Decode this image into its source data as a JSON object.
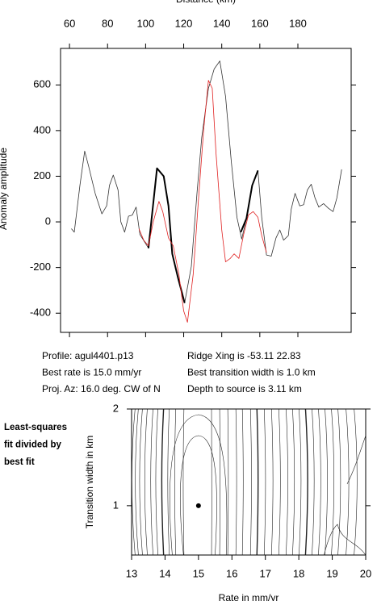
{
  "chart_data": [
    {
      "type": "line",
      "x_label": "Distance (km)",
      "y_label": "Anomaly amplitude",
      "xlim": [
        55.3,
        208
      ],
      "ylim": [
        -484,
        760
      ],
      "xticks": [
        60,
        80,
        100,
        120,
        140,
        160,
        180
      ],
      "yticks": [
        -400,
        -200,
        0,
        200,
        400,
        600
      ],
      "series": [
        {
          "color": "#333333",
          "line_width": 0.8,
          "x": [
            61,
            62.5,
            65.5,
            68,
            70,
            73.5,
            77,
            79.5,
            81,
            83,
            85.5,
            87,
            89,
            91,
            93,
            95,
            97,
            100,
            101.5,
            106,
            109.5,
            112,
            114,
            117,
            120.5,
            124,
            127,
            129.5,
            133,
            136,
            139,
            142,
            145,
            148,
            150.5,
            153,
            156,
            159,
            161,
            163.5,
            166,
            168.5,
            170.5,
            172.5,
            175,
            176.5,
            178.5,
            181,
            183,
            185,
            187,
            189,
            191,
            193.5,
            196,
            198.5,
            200.5,
            203
          ],
          "values": [
            -30,
            -45,
            160,
            310,
            245,
            125,
            35,
            70,
            160,
            205,
            140,
            0,
            -45,
            25,
            30,
            65,
            -55,
            -95,
            -115,
            235,
            200,
            70,
            -140,
            -245,
            -355,
            -195,
            125,
            370,
            585,
            670,
            705,
            550,
            265,
            20,
            -75,
            15,
            160,
            225,
            20,
            -145,
            -150,
            -70,
            -35,
            -80,
            -60,
            55,
            125,
            70,
            75,
            140,
            165,
            105,
            65,
            80,
            60,
            45,
            105,
            230
          ]
        },
        {
          "color": "#000000",
          "line_width": 2,
          "x": [
            101.5,
            106,
            109.5,
            112,
            114,
            117,
            120.5,
            135,
            150,
            153,
            156,
            159
          ],
          "values": [
            -115,
            235,
            200,
            70,
            -140,
            -245,
            -355,
            null,
            -45,
            15,
            160,
            225
          ]
        },
        {
          "color": "#e02020",
          "line_width": 0.8,
          "x": [
            96.5,
            99,
            101.5,
            104,
            107,
            109,
            112,
            114.5,
            117.5,
            120,
            122,
            125,
            128,
            130.5,
            133,
            135,
            137,
            140,
            142,
            144.5,
            146.5,
            149,
            151.5,
            154,
            156.5,
            159,
            161,
            163.5
          ],
          "values": [
            -30,
            -80,
            -105,
            0,
            90,
            45,
            -70,
            -105,
            -230,
            -390,
            -440,
            -230,
            125,
            405,
            620,
            585,
            300,
            -35,
            -175,
            -160,
            -140,
            -160,
            -55,
            30,
            45,
            20,
            -60,
            -135
          ]
        }
      ]
    },
    {
      "type": "scatter",
      "x_label": "Rate in mm/yr",
      "y_label": "Transition width in km",
      "xlim": [
        13,
        20
      ],
      "ylim": [
        0.49,
        2
      ],
      "xticks": [
        13,
        14,
        15,
        16,
        17,
        18,
        19,
        20
      ],
      "yticks": [
        1,
        2
      ],
      "series": [
        {
          "color": "#000000",
          "x": [
            15
          ],
          "values": [
            1
          ]
        }
      ]
    }
  ],
  "info": [
    [
      "Profile: agul4401.p13",
      "Ridge Xing is -53.11 22.83"
    ],
    [
      "Best rate is 15.0 mm/yr",
      "Best transition width is 1.0 km"
    ],
    [
      "Proj. Az: 16.0 deg. CW of N",
      "Depth to source is   3.11 km"
    ]
  ],
  "side_note": [
    "Least-squares",
    "fit divided by",
    "best fit"
  ]
}
